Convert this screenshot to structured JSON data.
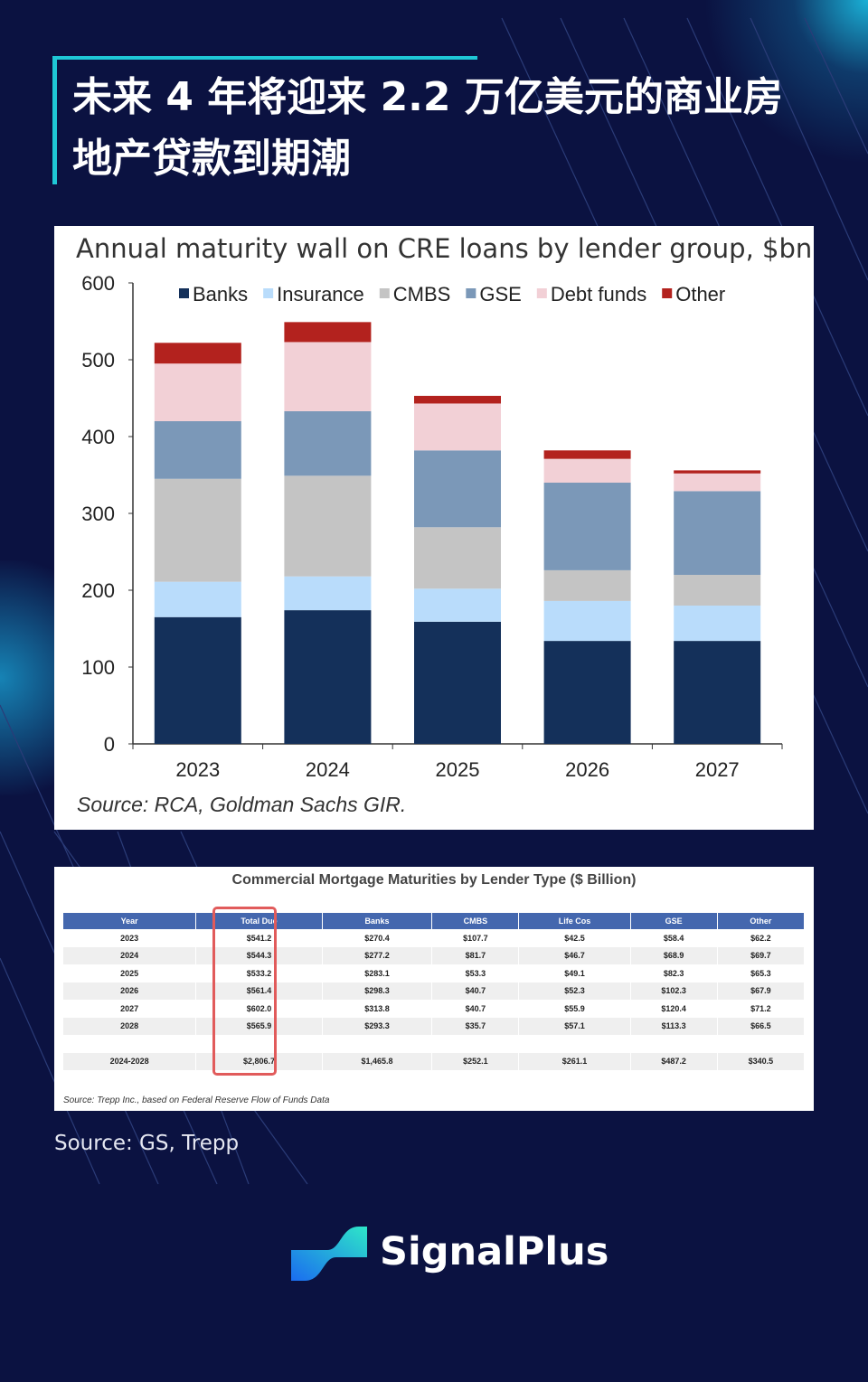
{
  "title": "未来 4 年将迎来 2.2 万亿美元的商业房地产贷款到期潮",
  "chart_data": {
    "type": "bar",
    "stacked": true,
    "title": "Annual maturity wall on CRE loans by lender group, $bn",
    "categories": [
      "2023",
      "2024",
      "2025",
      "2026",
      "2027"
    ],
    "ylim": [
      0,
      600
    ],
    "yticks": [
      "0",
      "100",
      "200",
      "300",
      "400",
      "500",
      "600"
    ],
    "legend_position": "top",
    "grid": false,
    "series": [
      {
        "name": "Banks",
        "color": "#14305a",
        "values": [
          165,
          174,
          159,
          134,
          134
        ]
      },
      {
        "name": "Insurance",
        "color": "#b9dcfb",
        "values": [
          46,
          44,
          43,
          52,
          46
        ]
      },
      {
        "name": "CMBS",
        "color": "#c4c4c4",
        "values": [
          134,
          131,
          80,
          40,
          40
        ]
      },
      {
        "name": "GSE",
        "color": "#7b98b8",
        "values": [
          75,
          84,
          100,
          114,
          109
        ]
      },
      {
        "name": "Debt funds",
        "color": "#f2d0d6",
        "values": [
          75,
          90,
          61,
          31,
          23
        ]
      },
      {
        "name": "Other",
        "color": "#b3221e",
        "values": [
          27,
          26,
          10,
          11,
          4
        ]
      }
    ],
    "source": "Source: RCA, Goldman Sachs GIR."
  },
  "table": {
    "title": "Commercial Mortgage Maturities by Lender Type ($ Billion)",
    "headers": [
      "Year",
      "Total Due",
      "Banks",
      "CMBS",
      "Life Cos",
      "GSE",
      "Other"
    ],
    "rows": [
      [
        "2023",
        "$541.2",
        "$270.4",
        "$107.7",
        "$42.5",
        "$58.4",
        "$62.2"
      ],
      [
        "2024",
        "$544.3",
        "$277.2",
        "$81.7",
        "$46.7",
        "$68.9",
        "$69.7"
      ],
      [
        "2025",
        "$533.2",
        "$283.1",
        "$53.3",
        "$49.1",
        "$82.3",
        "$65.3"
      ],
      [
        "2026",
        "$561.4",
        "$298.3",
        "$40.7",
        "$52.3",
        "$102.3",
        "$67.9"
      ],
      [
        "2027",
        "$602.0",
        "$313.8",
        "$40.7",
        "$55.9",
        "$120.4",
        "$71.2"
      ],
      [
        "2028",
        "$565.9",
        "$293.3",
        "$35.7",
        "$57.1",
        "$113.3",
        "$66.5"
      ]
    ],
    "total_row": [
      "2024-2028",
      "$2,806.7",
      "$1,465.8",
      "$252.1",
      "$261.1",
      "$487.2",
      "$340.5"
    ],
    "source": "Source: Trepp Inc., based on Federal Reserve Flow of Funds Data",
    "highlight_color": "#e15b5b"
  },
  "source": "Source: GS, Trepp",
  "brand": "SignalPlus"
}
